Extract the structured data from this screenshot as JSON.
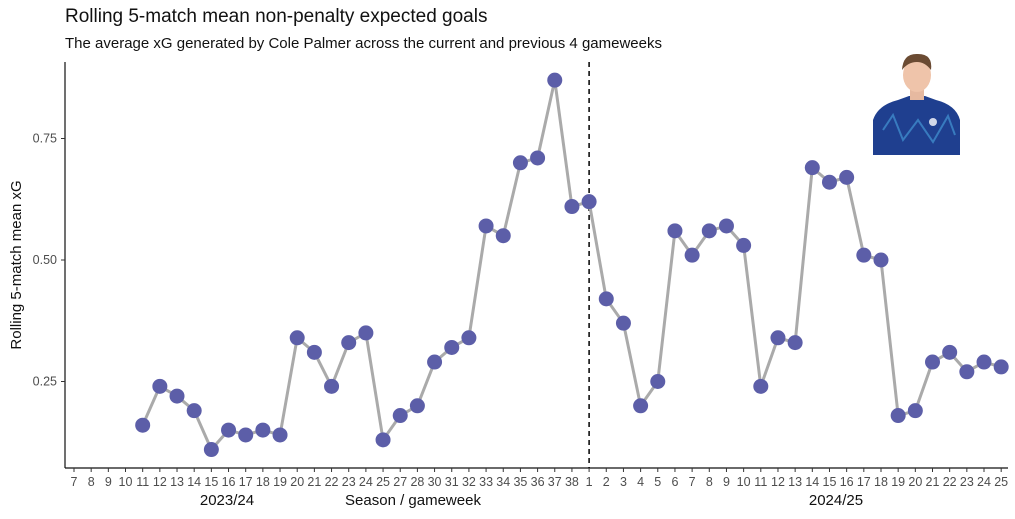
{
  "chart_data": {
    "type": "line",
    "title": "Rolling 5-match mean non-penalty expected goals",
    "subtitle": "The average xG generated by Cole Palmer across the current and previous 4 gameweeks",
    "xlabel": "Season / gameweek",
    "ylabel": "Rolling 5-match mean xG",
    "ylim": [
      0.072,
      0.906
    ],
    "yticks": [
      "0.25",
      "0.50",
      "0.75"
    ],
    "ytick_values": [
      0.25,
      0.5,
      0.75
    ],
    "grid": false,
    "season_divider": "dashed vertical line between 2023/24 GW38 and 2024/25 GW1",
    "colors": {
      "line": "#aaaaaa",
      "point": "#5c5ea8"
    },
    "seasons": [
      {
        "label": "2023/24",
        "gameweeks": [
          "7",
          "8",
          "9",
          "10",
          "11",
          "12",
          "13",
          "14",
          "15",
          "16",
          "17",
          "18",
          "19",
          "20",
          "21",
          "22",
          "23",
          "24",
          "25",
          "27",
          "28",
          "30",
          "31",
          "32",
          "33",
          "34",
          "35",
          "36",
          "37",
          "38"
        ],
        "values": [
          null,
          null,
          null,
          null,
          0.16,
          0.24,
          0.22,
          0.19,
          0.11,
          0.15,
          0.14,
          0.15,
          0.14,
          0.34,
          0.31,
          0.24,
          0.33,
          0.35,
          0.13,
          0.18,
          0.2,
          0.29,
          0.32,
          0.34,
          0.57,
          0.55,
          0.7,
          0.71,
          0.87,
          0.61
        ]
      },
      {
        "label": "2024/25",
        "gameweeks": [
          "1",
          "2",
          "3",
          "4",
          "5",
          "6",
          "7",
          "8",
          "9",
          "10",
          "11",
          "12",
          "13",
          "14",
          "15",
          "16",
          "17",
          "18",
          "19",
          "20",
          "21",
          "22",
          "23",
          "24",
          "25"
        ],
        "values": [
          0.62,
          0.42,
          0.37,
          0.2,
          0.25,
          0.56,
          0.51,
          0.56,
          0.57,
          0.53,
          0.24,
          0.34,
          0.33,
          0.69,
          0.66,
          0.67,
          0.51,
          0.5,
          0.18,
          0.19,
          0.29,
          0.31,
          0.27,
          0.29,
          0.28
        ]
      }
    ]
  },
  "image": {
    "icon": "player-photo-icon"
  }
}
